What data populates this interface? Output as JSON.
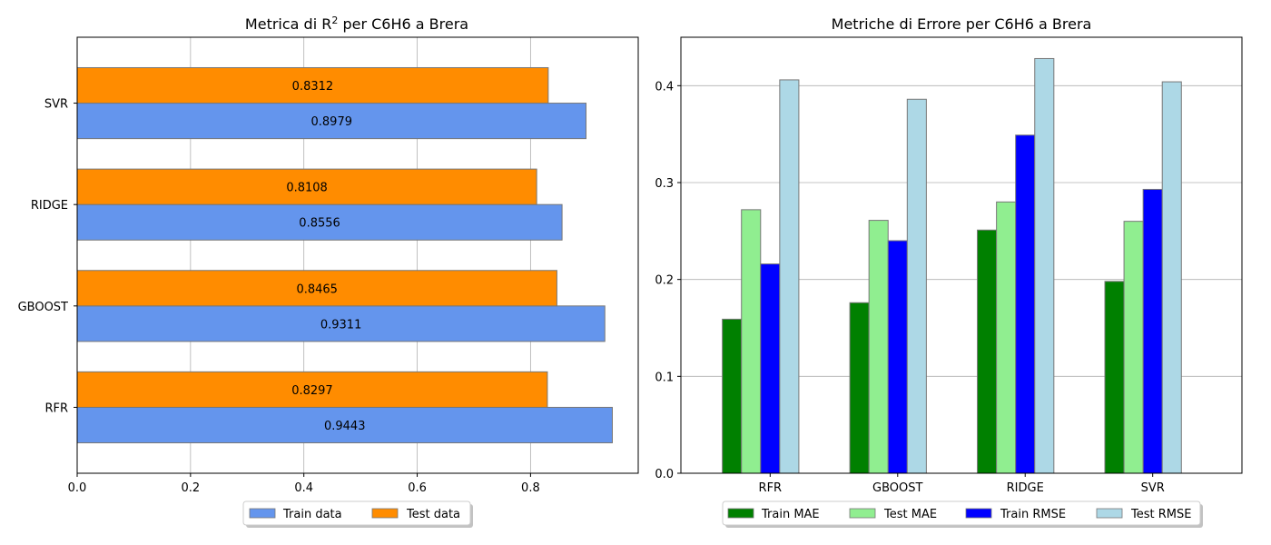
{
  "chart_data": [
    {
      "type": "bar",
      "orientation": "horizontal",
      "title": "Metrica di R² per C6H6 a Brera",
      "title_main": "Metrica di R",
      "title_sup": "2",
      "title_rest": " per C6H6 a Brera",
      "categories": [
        "RFR",
        "GBOOST",
        "RIDGE",
        "SVR"
      ],
      "series": [
        {
          "name": "Train data",
          "values": [
            0.9443,
            0.9311,
            0.8556,
            0.8979
          ],
          "color": "#6495ed"
        },
        {
          "name": "Test data",
          "values": [
            0.8297,
            0.8465,
            0.8108,
            0.8312
          ],
          "color": "#ff8c00"
        }
      ],
      "value_labels": {
        "train": [
          "0.9443",
          "0.9311",
          "0.8556",
          "0.8979"
        ],
        "test": [
          "0.8297",
          "0.8465",
          "0.8108",
          "0.8312"
        ]
      },
      "xlim": [
        0,
        0.99
      ],
      "xticks": [
        0.0,
        0.2,
        0.4,
        0.6,
        0.8
      ],
      "xtick_labels": [
        "0.0",
        "0.2",
        "0.4",
        "0.6",
        "0.8"
      ],
      "grid": "x",
      "legend": "bottom-center"
    },
    {
      "type": "bar",
      "orientation": "vertical",
      "title": "Metriche di Errore per C6H6 a Brera",
      "categories": [
        "RFR",
        "GBOOST",
        "RIDGE",
        "SVR"
      ],
      "series": [
        {
          "name": "Train MAE",
          "values": [
            0.159,
            0.176,
            0.251,
            0.198
          ],
          "color": "#008000"
        },
        {
          "name": "Test MAE",
          "values": [
            0.272,
            0.261,
            0.28,
            0.26
          ],
          "color": "#90ee90"
        },
        {
          "name": "Train RMSE",
          "values": [
            0.216,
            0.24,
            0.349,
            0.293
          ],
          "color": "#0000ff"
        },
        {
          "name": "Test RMSE",
          "values": [
            0.406,
            0.386,
            0.428,
            0.404
          ],
          "color": "#add8e6"
        }
      ],
      "ylim": [
        0,
        0.45
      ],
      "yticks": [
        0.0,
        0.1,
        0.2,
        0.3,
        0.4
      ],
      "ytick_labels": [
        "0.0",
        "0.1",
        "0.2",
        "0.3",
        "0.4"
      ],
      "grid": "y",
      "legend": "bottom-center"
    }
  ]
}
